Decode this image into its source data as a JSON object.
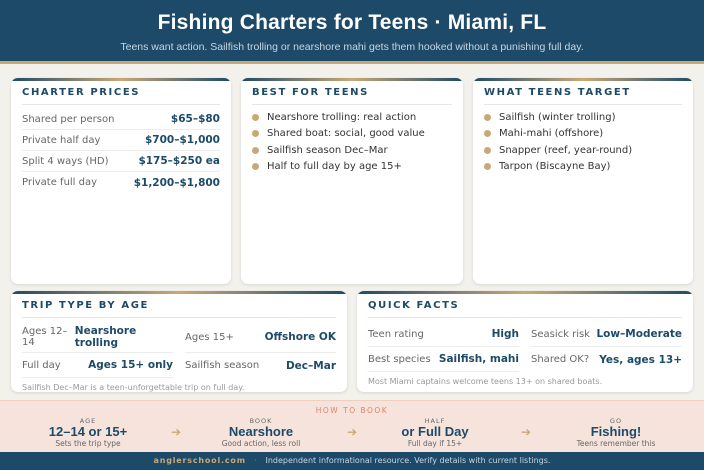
{
  "header": {
    "title": "Fishing Charters for Teens · Miami, FL",
    "subtitle": "Teens want action. Sailfish trolling or nearshore mahi gets them hooked without a punishing full day."
  },
  "charter_prices": {
    "title": "CHARTER PRICES",
    "rows": [
      {
        "label": "Shared per person",
        "value": "$65–$80"
      },
      {
        "label": "Private half day",
        "value": "$700–$1,000"
      },
      {
        "label": "Split 4 ways (HD)",
        "value": "$175–$250 ea"
      },
      {
        "label": "Private full day",
        "value": "$1,200–$1,800"
      }
    ]
  },
  "best_for_teens": {
    "title": "BEST FOR TEENS",
    "items": [
      "Nearshore trolling: real action",
      "Shared boat: social, good value",
      "Sailfish season Dec–Mar",
      "Half to full day by age 15+"
    ]
  },
  "what_teens_target": {
    "title": "WHAT TEENS TARGET",
    "items": [
      "Sailfish (winter trolling)",
      "Mahi-mahi (offshore)",
      "Snapper (reef, year-round)",
      "Tarpon (Biscayne Bay)"
    ]
  },
  "trip_type": {
    "title": "TRIP TYPE BY AGE",
    "rows": [
      {
        "label": "Ages 12–14",
        "value": "Nearshore trolling"
      },
      {
        "label": "Ages 15+",
        "value": "Offshore OK"
      },
      {
        "label": "Full day",
        "value": "Ages 15+ only"
      },
      {
        "label": "Sailfish season",
        "value": "Dec–Mar"
      }
    ],
    "note": "Sailfish Dec–Mar is a teen-unforgettable trip on full day."
  },
  "quick_facts": {
    "title": "QUICK FACTS",
    "rows": [
      {
        "label": "Teen rating",
        "value": "High"
      },
      {
        "label": "Seasick risk",
        "value": "Low–Moderate"
      },
      {
        "label": "Best species",
        "value": "Sailfish, mahi"
      },
      {
        "label": "Shared OK?",
        "value": "Yes, ages 13+"
      }
    ],
    "note": "Most Miami captains welcome teens 13+ on shared boats."
  },
  "how_to_book": {
    "title": "HOW TO BOOK",
    "steps": [
      {
        "kicker": "AGE",
        "value": "12–14 or 15+",
        "sub": "Sets the trip type"
      },
      {
        "kicker": "BOOK",
        "value": "Nearshore",
        "sub": "Good action, less roll"
      },
      {
        "kicker": "HALF",
        "value": "or Full Day",
        "sub": "Full day if 15+"
      },
      {
        "kicker": "GO",
        "value": "Fishing!",
        "sub": "Teens remember this"
      }
    ],
    "arrow": "➔"
  },
  "footer": {
    "site": "anglerschool.com",
    "sep": "·",
    "text": "Independent informational resource. Verify details with current listings."
  },
  "colors": {
    "navy": "#1d4a68",
    "gold": "#c9a877",
    "band": "#f6e4dc"
  }
}
